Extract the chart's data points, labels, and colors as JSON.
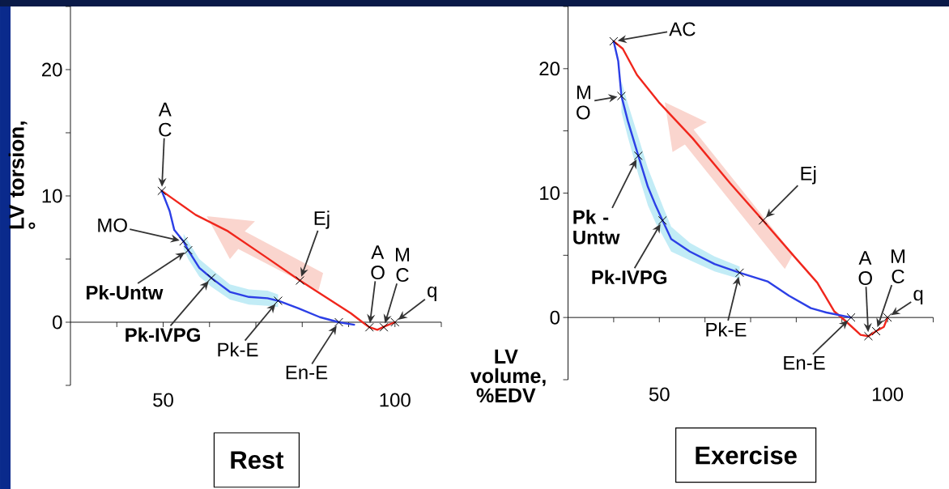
{
  "chart_data": [
    {
      "type": "line",
      "title": "Rest",
      "ylabel": "LV torsion, °",
      "xlim": [
        30,
        110
      ],
      "ylim": [
        -5,
        25
      ],
      "xticks": [
        {
          "value": 30,
          "label": null
        },
        {
          "value": 40,
          "label": null
        },
        50,
        {
          "value": 60,
          "label": null
        },
        {
          "value": 70,
          "label": null
        },
        {
          "value": 80,
          "label": null
        },
        {
          "value": 90,
          "label": null
        },
        100,
        {
          "value": 110,
          "label": null
        }
      ],
      "yticks": [
        {
          "value": -5,
          "label": null
        },
        0,
        {
          "value": 5,
          "label": null
        },
        10,
        {
          "value": 15,
          "label": null
        },
        20,
        {
          "value": 25,
          "label": null
        }
      ],
      "series": [
        {
          "color": "#f0261c",
          "x": [
            49.7,
            52,
            57,
            64,
            72,
            79.5,
            85,
            90.5,
            93,
            94.5,
            96.2,
            98,
            100
          ],
          "values": [
            10.4,
            9.8,
            8.5,
            7.2,
            5.2,
            3.3,
            2.0,
            0.7,
            0.0,
            -0.4,
            -0.6,
            -0.3,
            0.0
          ]
        },
        {
          "color": "#2c3fe6",
          "x": [
            49.7,
            51.4,
            52.4,
            54.4,
            55.4,
            57.8,
            60.4,
            64.4,
            68.5,
            72.5,
            74.8,
            79.2,
            83.8,
            87.9,
            91.2
          ],
          "values": [
            10.4,
            8.8,
            7.3,
            6.4,
            5.7,
            4.3,
            3.5,
            2.4,
            2.0,
            1.9,
            1.7,
            1.1,
            0.4,
            0.0,
            -0.2
          ],
          "upper": [
            null,
            null,
            null,
            7.0,
            6.4,
            5.0,
            4.2,
            3.0,
            2.6,
            2.5,
            2.2,
            null,
            null,
            null,
            null
          ],
          "lower": [
            null,
            null,
            null,
            5.8,
            5.0,
            3.6,
            2.8,
            1.8,
            1.4,
            1.3,
            1.2,
            null,
            null,
            null,
            null
          ]
        }
      ],
      "annotations": [
        {
          "text": "A C",
          "x": 49.7,
          "y": 10.4
        },
        {
          "text": "MO",
          "x": 54.4,
          "y": 6.4
        },
        {
          "text": "Pk-Untw",
          "x": 55.4,
          "y": 5.7
        },
        {
          "text": "Pk-IVPG",
          "x": 60.4,
          "y": 3.5
        },
        {
          "text": "Pk-E",
          "x": 74.8,
          "y": 1.7
        },
        {
          "text": "Ej",
          "x": 79.5,
          "y": 3.3
        },
        {
          "text": "En-E",
          "x": 87.9,
          "y": 0.0
        },
        {
          "text": "A O",
          "x": 94.5,
          "y": -0.4
        },
        {
          "text": "M C",
          "x": 97.6,
          "y": -0.4
        },
        {
          "text": "q",
          "x": 100,
          "y": 0.0
        }
      ]
    },
    {
      "type": "line",
      "title": "Exercise",
      "xlabel": "LV volume, %EDV",
      "xlim": [
        30,
        110
      ],
      "ylim": [
        -5,
        25
      ],
      "xticks": [
        {
          "value": 30,
          "label": null
        },
        {
          "value": 40,
          "label": null
        },
        50,
        {
          "value": 60,
          "label": null
        },
        {
          "value": 70,
          "label": null
        },
        {
          "value": 80,
          "label": null
        },
        {
          "value": 90,
          "label": null
        },
        100,
        {
          "value": 110,
          "label": null
        }
      ],
      "yticks": [
        {
          "value": -5,
          "label": null
        },
        0,
        {
          "value": 5,
          "label": null
        },
        10,
        {
          "value": 15,
          "label": null
        },
        20,
        {
          "value": 25,
          "label": null
        }
      ],
      "series": [
        {
          "color": "#f0261c",
          "x": [
            40,
            42,
            45.1,
            49.9,
            57.3,
            65.5,
            72.7,
            79.8,
            84.6,
            88.3,
            90.7,
            94.1,
            95.8,
            97.5,
            99.2,
            100
          ],
          "values": [
            22.2,
            21.6,
            19.5,
            17.3,
            14.4,
            10.8,
            7.8,
            4.8,
            2.8,
            0.5,
            -0.25,
            -1.4,
            -1.5,
            -1.1,
            -0.75,
            0.0
          ]
        },
        {
          "color": "#2c3fe6",
          "x": [
            40,
            41,
            41.7,
            43.1,
            45.4,
            47.5,
            49.2,
            50.7,
            52.6,
            56.7,
            62.1,
            67.6,
            73.7,
            78.4,
            83.2,
            86.6,
            92
          ],
          "values": [
            22.2,
            20.6,
            17.8,
            15.8,
            13.0,
            10.5,
            9.0,
            7.8,
            6.3,
            5.3,
            4.3,
            3.6,
            2.9,
            1.75,
            0.75,
            0.4,
            0.0
          ],
          "upper": [
            null,
            null,
            19.0,
            17.2,
            14.5,
            12.0,
            10.4,
            9.0,
            7.3,
            6.0,
            4.9,
            4.1,
            null,
            null,
            null,
            null,
            null
          ],
          "lower": [
            null,
            null,
            16.5,
            14.5,
            11.5,
            9.0,
            7.6,
            6.6,
            5.3,
            4.6,
            3.7,
            3.1,
            null,
            null,
            null,
            null,
            null
          ]
        }
      ],
      "annotations": [
        {
          "text": "AC",
          "x": 40,
          "y": 22.2
        },
        {
          "text": "M O",
          "x": 41.7,
          "y": 17.8
        },
        {
          "text": "Pk -Untw",
          "x": 45.4,
          "y": 13.0
        },
        {
          "text": "Pk-IVPG",
          "x": 50.7,
          "y": 7.8
        },
        {
          "text": "Pk-E",
          "x": 67.6,
          "y": 3.6
        },
        {
          "text": "Ej",
          "x": 72.7,
          "y": 7.8
        },
        {
          "text": "En-E",
          "x": 92,
          "y": 0.0
        },
        {
          "text": "A O",
          "x": 95.8,
          "y": -1.5
        },
        {
          "text": "M C",
          "x": 97.5,
          "y": -1.1
        },
        {
          "text": "q",
          "x": 100,
          "y": 0.0
        }
      ]
    }
  ]
}
